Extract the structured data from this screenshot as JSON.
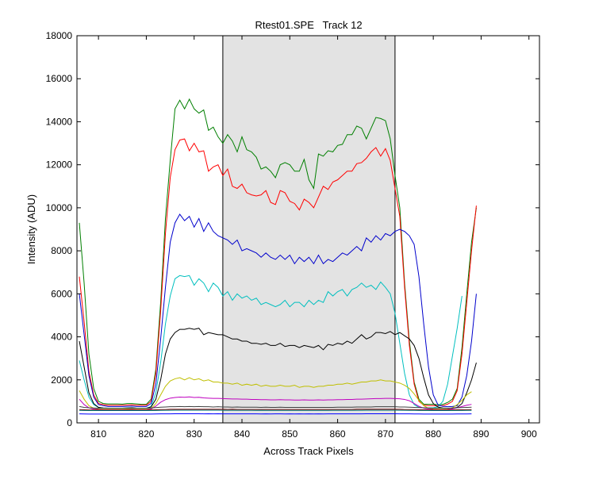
{
  "chart_data": {
    "type": "line",
    "title": "Rtest01.SPE   Track 12",
    "xlabel": "Across Track Pixels",
    "ylabel": "Intensity (ADU)",
    "xlim": [
      805.5,
      902.2
    ],
    "ylim": [
      0,
      18000
    ],
    "xticks": [
      810,
      820,
      830,
      840,
      850,
      860,
      870,
      880,
      890,
      900
    ],
    "yticks": [
      0,
      2000,
      4000,
      6000,
      8000,
      10000,
      12000,
      14000,
      16000,
      18000
    ],
    "grid": false,
    "legend": "none",
    "shaded_region": {
      "x0": 836,
      "x1": 872,
      "color": "#e3e3e3"
    },
    "x_start": 806,
    "x_step": 1,
    "series": [
      {
        "color": "#007f00",
        "values": [
          9300,
          6500,
          3200,
          1600,
          1000,
          900,
          880,
          880,
          880,
          870,
          900,
          900,
          880,
          860,
          860,
          1100,
          2500,
          5600,
          9500,
          12200,
          14600,
          15000,
          14600,
          15050,
          14600,
          14400,
          14550,
          13600,
          13750,
          13300,
          13000,
          13400,
          13100,
          12600,
          13300,
          12700,
          12600,
          12350,
          11800,
          11900,
          11700,
          11400,
          12000,
          12100,
          12000,
          11700,
          11700,
          12250,
          11300,
          10900,
          12500,
          12400,
          12650,
          12600,
          12900,
          12950,
          13400,
          13400,
          13800,
          13700,
          13200,
          13700,
          14200,
          14150,
          14050,
          13200,
          11500,
          10000,
          6500,
          3800,
          1900,
          1100,
          870,
          860,
          860,
          850,
          860,
          950,
          1100,
          1600,
          3500,
          6000,
          8400,
          10000
        ]
      },
      {
        "color": "#ff0000",
        "values": [
          6800,
          4700,
          2400,
          1300,
          900,
          850,
          820,
          820,
          820,
          820,
          830,
          840,
          820,
          820,
          820,
          1000,
          2300,
          5200,
          8800,
          11400,
          12700,
          13150,
          13200,
          12650,
          13000,
          12600,
          12650,
          11700,
          11900,
          12000,
          11500,
          11800,
          11000,
          10900,
          11100,
          10700,
          10600,
          10550,
          10600,
          10800,
          10250,
          10150,
          10800,
          10700,
          10300,
          10200,
          9900,
          10400,
          10250,
          10000,
          10500,
          11000,
          10850,
          11200,
          11300,
          11500,
          11700,
          11700,
          12050,
          12100,
          12300,
          12600,
          12800,
          12400,
          12750,
          12200,
          10900,
          9600,
          6300,
          3600,
          1800,
          1000,
          820,
          800,
          800,
          790,
          800,
          870,
          1000,
          1500,
          3200,
          5600,
          8000,
          10100
        ]
      },
      {
        "color": "#0000cc",
        "values": [
          6000,
          4100,
          2200,
          1200,
          850,
          800,
          760,
          760,
          760,
          760,
          770,
          780,
          760,
          760,
          760,
          900,
          1800,
          3900,
          6300,
          8400,
          9300,
          9700,
          9400,
          9600,
          9100,
          9500,
          8900,
          9300,
          8900,
          8700,
          8600,
          8500,
          8300,
          8500,
          8000,
          8100,
          8000,
          7900,
          7700,
          7900,
          7700,
          7600,
          7800,
          7600,
          7800,
          7400,
          7700,
          7500,
          7700,
          7400,
          7800,
          7400,
          7600,
          7500,
          7700,
          7900,
          7800,
          8000,
          8200,
          8000,
          8600,
          8400,
          8700,
          8500,
          8800,
          8700,
          8900,
          9000,
          8900,
          8700,
          8300,
          6800,
          4600,
          2600,
          1300,
          830,
          770,
          750,
          760,
          800,
          1200,
          2200,
          3800,
          6000
        ]
      },
      {
        "color": "#00bfbf",
        "values": [
          2900,
          2000,
          1200,
          850,
          720,
          690,
          680,
          680,
          680,
          680,
          690,
          700,
          680,
          680,
          680,
          760,
          1400,
          2800,
          4600,
          5900,
          6700,
          6850,
          6800,
          6850,
          6400,
          6700,
          6500,
          6100,
          6500,
          6300,
          5900,
          6100,
          5700,
          6000,
          5800,
          5900,
          5700,
          5800,
          5500,
          5600,
          5500,
          5400,
          5500,
          5700,
          5400,
          5600,
          5600,
          5400,
          5700,
          5500,
          5700,
          5600,
          6100,
          5900,
          6100,
          6200,
          5900,
          6200,
          6300,
          6500,
          6300,
          6400,
          6200,
          6550,
          6300,
          6000,
          5100,
          3700,
          2300,
          1300,
          850,
          720,
          700,
          700,
          700,
          750,
          1000,
          1800,
          3100,
          4400,
          5900
        ]
      },
      {
        "color": "#000000",
        "values": [
          3800,
          2600,
          1400,
          900,
          720,
          690,
          680,
          680,
          680,
          680,
          690,
          700,
          680,
          680,
          680,
          740,
          1100,
          2000,
          3200,
          3900,
          4200,
          4350,
          4350,
          4400,
          4350,
          4400,
          4100,
          4200,
          4150,
          4100,
          4100,
          4000,
          3900,
          3900,
          3800,
          3800,
          3700,
          3700,
          3650,
          3700,
          3600,
          3600,
          3700,
          3550,
          3600,
          3600,
          3500,
          3600,
          3550,
          3500,
          3600,
          3400,
          3650,
          3600,
          3700,
          3650,
          3800,
          3700,
          3900,
          4100,
          3900,
          4000,
          4200,
          4200,
          4150,
          4250,
          4100,
          4200,
          4050,
          3900,
          3600,
          3000,
          2100,
          1300,
          900,
          730,
          690,
          680,
          680,
          720,
          900,
          1400,
          2000,
          2800
        ]
      },
      {
        "color": "#bfbf00",
        "values": [
          1500,
          1100,
          800,
          680,
          640,
          630,
          630,
          630,
          630,
          630,
          640,
          640,
          630,
          630,
          630,
          660,
          900,
          1300,
          1700,
          1950,
          2050,
          2100,
          2000,
          2100,
          2000,
          2050,
          1950,
          2000,
          1900,
          1900,
          1850,
          1850,
          1800,
          1850,
          1750,
          1800,
          1750,
          1800,
          1700,
          1750,
          1700,
          1700,
          1750,
          1700,
          1700,
          1750,
          1650,
          1700,
          1700,
          1650,
          1700,
          1700,
          1750,
          1750,
          1800,
          1800,
          1850,
          1800,
          1850,
          1900,
          1900,
          1950,
          1950,
          2000,
          1950,
          1950,
          1900,
          1850,
          1750,
          1600,
          1350,
          1050,
          800,
          680,
          640,
          630,
          630,
          640,
          700,
          850,
          1050,
          1300,
          1450
        ]
      },
      {
        "color": "#bf00bf",
        "values": [
          1100,
          850,
          700,
          640,
          620,
          610,
          610,
          610,
          610,
          610,
          610,
          620,
          610,
          610,
          610,
          640,
          780,
          960,
          1080,
          1150,
          1180,
          1200,
          1190,
          1210,
          1180,
          1190,
          1160,
          1150,
          1140,
          1140,
          1130,
          1120,
          1110,
          1110,
          1100,
          1100,
          1090,
          1090,
          1080,
          1080,
          1070,
          1070,
          1080,
          1070,
          1070,
          1060,
          1060,
          1070,
          1060,
          1060,
          1070,
          1060,
          1070,
          1070,
          1080,
          1080,
          1090,
          1090,
          1100,
          1100,
          1110,
          1120,
          1130,
          1130,
          1140,
          1140,
          1130,
          1120,
          1090,
          1030,
          900,
          770,
          680,
          640,
          620,
          610,
          610,
          620,
          650,
          700,
          760,
          820,
          860
        ]
      },
      {
        "color": "#3f3f3f",
        "values": [
          760,
          720,
          700,
          690,
          680,
          680,
          680,
          680,
          680,
          680,
          680,
          680,
          680,
          680,
          680,
          690,
          710,
          730,
          740,
          750,
          750,
          760,
          750,
          760,
          750,
          760,
          750,
          750,
          740,
          750,
          740,
          740,
          730,
          740,
          730,
          730,
          730,
          730,
          720,
          730,
          720,
          720,
          730,
          720,
          720,
          720,
          720,
          720,
          720,
          720,
          720,
          720,
          720,
          720,
          730,
          730,
          730,
          730,
          740,
          740,
          740,
          740,
          750,
          750,
          750,
          750,
          750,
          740,
          740,
          730,
          720,
          710,
          700,
          690,
          680,
          680,
          680,
          680,
          690,
          700,
          710,
          720,
          730
        ]
      },
      {
        "color": "#7f0000",
        "values": [
          620,
          610,
          600,
          600,
          600,
          600,
          600,
          600,
          600,
          600,
          600,
          600,
          600,
          600,
          600,
          600,
          610,
          620,
          620,
          630,
          630,
          630,
          630,
          630,
          630,
          630,
          630,
          630,
          630,
          630,
          630,
          620,
          630,
          620,
          620,
          620,
          620,
          620,
          620,
          620,
          620,
          620,
          620,
          620,
          620,
          620,
          620,
          620,
          620,
          620,
          620,
          620,
          620,
          620,
          620,
          620,
          620,
          620,
          630,
          630,
          630,
          630,
          630,
          630,
          630,
          630,
          630,
          630,
          620,
          620,
          620,
          610,
          610,
          600,
          600,
          600,
          600,
          600,
          600,
          610,
          610,
          610,
          620
        ]
      },
      {
        "color": "#007f7f",
        "values": [
          580,
          575,
          570,
          570,
          570,
          570,
          570,
          570,
          570,
          570,
          570,
          570,
          570,
          570,
          570,
          570,
          575,
          580,
          585,
          585,
          590,
          590,
          590,
          590,
          590,
          590,
          590,
          590,
          590,
          590,
          585,
          585,
          585,
          585,
          585,
          585,
          585,
          580,
          585,
          580,
          580,
          580,
          580,
          580,
          580,
          580,
          580,
          580,
          580,
          580,
          580,
          580,
          580,
          585,
          585,
          585,
          585,
          585,
          585,
          585,
          590,
          590,
          590,
          590,
          590,
          590,
          590,
          585,
          585,
          580,
          580,
          575,
          575,
          570,
          570,
          570,
          570,
          570,
          570,
          575,
          575,
          580,
          580
        ]
      },
      {
        "color": "#0000ff",
        "values": [
          420,
          415,
          410,
          410,
          410,
          410,
          410,
          410,
          410,
          410,
          410,
          410,
          410,
          410,
          410,
          410,
          415,
          420,
          420,
          420,
          425,
          425,
          425,
          425,
          425,
          425,
          420,
          425,
          420,
          425,
          420,
          420,
          420,
          420,
          420,
          420,
          420,
          420,
          415,
          420,
          415,
          420,
          420,
          415,
          420,
          415,
          420,
          415,
          420,
          415,
          420,
          415,
          420,
          420,
          420,
          420,
          420,
          420,
          420,
          420,
          425,
          425,
          425,
          425,
          425,
          425,
          425,
          420,
          420,
          420,
          415,
          415,
          410,
          410,
          410,
          410,
          410,
          410,
          410,
          415,
          415,
          415,
          420
        ]
      }
    ]
  }
}
